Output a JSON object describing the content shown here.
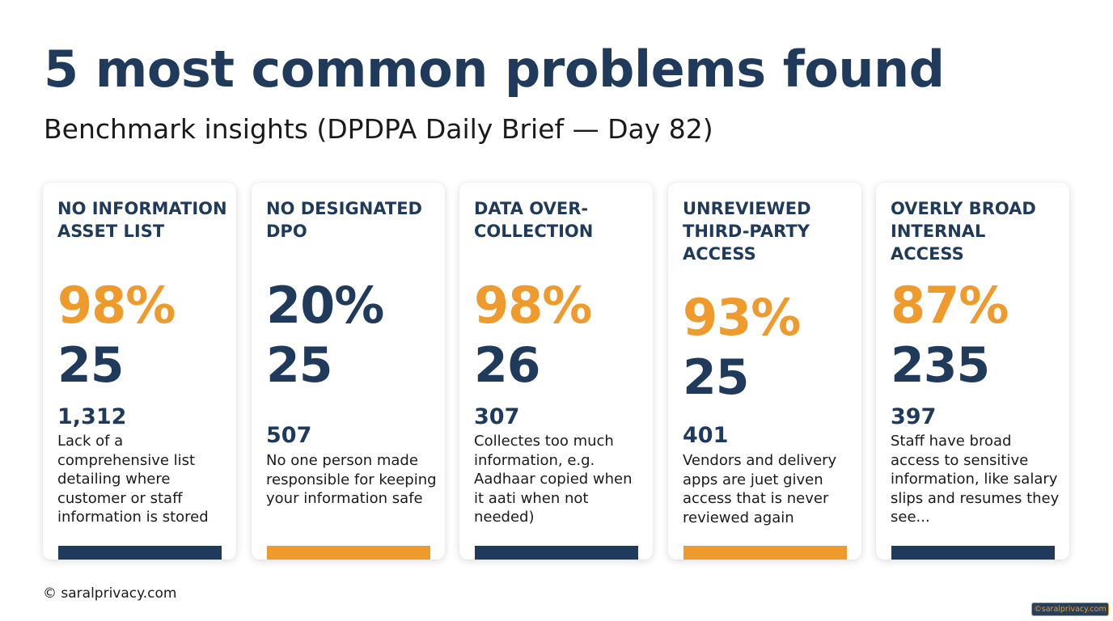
{
  "header": {
    "title": "5 most common problems found",
    "subtitle": "Benchmark insights (DPDPA Daily Brief — Day 82)"
  },
  "colors": {
    "navy": "#1f3a5a",
    "orange": "#ee9a2c"
  },
  "cards": [
    {
      "title": "NO INFORMATION ASSET LIST",
      "percent": "98%",
      "percent_color": "orange",
      "count": "25",
      "total": "1,312",
      "description": "Lack of a comprehensive list detailing where customer or staff information is stored",
      "bar_color": "navy"
    },
    {
      "title": "NO DESIGNATED DPO",
      "percent": "20%",
      "percent_color": "navy",
      "count": "25",
      "total": "507",
      "description": "No one person made responsible for keeping your information safe",
      "bar_color": "orange"
    },
    {
      "title": "DATA OVER-COLLECTION",
      "percent": "98%",
      "percent_color": "orange",
      "count": "26",
      "total": "307",
      "description": "Collectes too much information, e.g. Aadhaar copied when it aati when not needed)",
      "bar_color": "navy"
    },
    {
      "title": "UNREVIEWED THIRD-PARTY ACCESS",
      "percent": "93%",
      "percent_color": "orange",
      "count": "25",
      "total": "401",
      "description": "Vendors and delivery apps are juet given access that is never reviewed again",
      "bar_color": "orange"
    },
    {
      "title": "OVERLY BROAD INTERNAL ACCESS",
      "percent": "87%",
      "percent_color": "orange",
      "count": "235",
      "total": "397",
      "description": "Staff have broad access to sensitive information, like salary slips and resumes they see...",
      "bar_color": "navy"
    }
  ],
  "footer": {
    "copyright": "© saralprivacy.com",
    "badge": "©saralprivacy.com"
  }
}
